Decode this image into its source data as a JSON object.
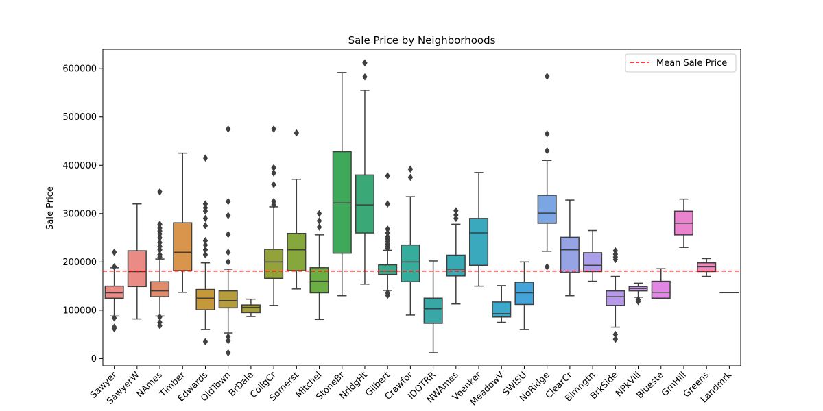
{
  "chart_data": {
    "type": "box",
    "title": "Sale Price by Neighborhoods",
    "xlabel": "",
    "ylabel": "Sale Price",
    "ylim": [
      -15000,
      640000
    ],
    "yticks": [
      0,
      100000,
      200000,
      300000,
      400000,
      500000,
      600000
    ],
    "ytick_labels": [
      "0",
      "100000",
      "200000",
      "300000",
      "400000",
      "500000",
      "600000"
    ],
    "grid": false,
    "legend": {
      "placement": "top-right",
      "entries": [
        {
          "label": "Mean Sale Price",
          "color": "#ff0000",
          "style": "dashed"
        }
      ]
    },
    "mean_line": 181000,
    "boxes": [
      {
        "name": "Sawyer",
        "color": "#ea8c85",
        "whisker_low": 88000,
        "q1": 125000,
        "median": 136000,
        "q3": 150000,
        "whisker_high": 188000,
        "outliers": [
          62000,
          65000,
          84000,
          190000,
          220000
        ]
      },
      {
        "name": "SawyerW",
        "color": "#ea8c85",
        "whisker_low": 82000,
        "q1": 149000,
        "median": 180000,
        "q3": 223000,
        "whisker_high": 320000,
        "outliers": []
      },
      {
        "name": "NAmes",
        "color": "#de8c6c",
        "whisker_low": 88000,
        "q1": 128000,
        "median": 140000,
        "q3": 159000,
        "whisker_high": 206000,
        "outliers": [
          68000,
          75000,
          86000,
          210000,
          215000,
          225000,
          232000,
          240000,
          250000,
          258000,
          264000,
          270000,
          278000,
          345000
        ]
      },
      {
        "name": "Timber",
        "color": "#d8954b",
        "whisker_low": 137000,
        "q1": 182000,
        "median": 220000,
        "q3": 281000,
        "whisker_high": 425000,
        "outliers": []
      },
      {
        "name": "Edwards",
        "color": "#c5983c",
        "whisker_low": 60000,
        "q1": 101000,
        "median": 125000,
        "q3": 143000,
        "whisker_high": 198000,
        "outliers": [
          35000,
          215000,
          225000,
          235000,
          244000,
          275000,
          290000,
          305000,
          312000,
          320000,
          415000
        ]
      },
      {
        "name": "OldTown",
        "color": "#b59c3d",
        "whisker_low": 53000,
        "q1": 105000,
        "median": 120000,
        "q3": 140000,
        "whisker_high": 185000,
        "outliers": [
          12000,
          37000,
          45000,
          200000,
          220000,
          257000,
          296000,
          325000,
          475000
        ]
      },
      {
        "name": "BrDale",
        "color": "#a49e3b",
        "whisker_low": 87000,
        "q1": 95000,
        "median": 106000,
        "q3": 111000,
        "whisker_high": 123000,
        "outliers": []
      },
      {
        "name": "CollgCr",
        "color": "#94a23a",
        "whisker_low": 110000,
        "q1": 166000,
        "median": 200000,
        "q3": 226000,
        "whisker_high": 314000,
        "outliers": [
          318000,
          325000,
          360000,
          384000,
          395000,
          475000
        ]
      },
      {
        "name": "Somerst",
        "color": "#85a73b",
        "whisker_low": 144000,
        "q1": 182000,
        "median": 225000,
        "q3": 259000,
        "whisker_high": 371000,
        "outliers": [
          467000
        ]
      },
      {
        "name": "Mitchel",
        "color": "#6bae44",
        "whisker_low": 81000,
        "q1": 136000,
        "median": 160000,
        "q3": 188000,
        "whisker_high": 256000,
        "outliers": [
          272000,
          285000,
          300000
        ]
      },
      {
        "name": "StoneBr",
        "color": "#3ea958",
        "whisker_low": 130000,
        "q1": 218000,
        "median": 322000,
        "q3": 428000,
        "whisker_high": 592000,
        "outliers": []
      },
      {
        "name": "NridgHt",
        "color": "#3aa977",
        "whisker_low": 154000,
        "q1": 260000,
        "median": 318000,
        "q3": 380000,
        "whisker_high": 555000,
        "outliers": [
          583000,
          612000
        ]
      },
      {
        "name": "Gilbert",
        "color": "#38aa8b",
        "whisker_low": 141000,
        "q1": 174000,
        "median": 181000,
        "q3": 194000,
        "whisker_high": 224000,
        "outliers": [
          131000,
          136000,
          228000,
          232000,
          237000,
          242000,
          247000,
          252000,
          260000,
          268000,
          320000,
          378000
        ]
      },
      {
        "name": "Crawfor",
        "color": "#36ac9c",
        "whisker_low": 90000,
        "q1": 159000,
        "median": 200000,
        "q3": 235000,
        "whisker_high": 335000,
        "outliers": [
          375000,
          392000
        ]
      },
      {
        "name": "IDOTRR",
        "color": "#39a7a6",
        "whisker_low": 12000,
        "q1": 73000,
        "median": 103000,
        "q3": 125000,
        "whisker_high": 202000,
        "outliers": []
      },
      {
        "name": "NWAmes",
        "color": "#38a8b3",
        "whisker_low": 113000,
        "q1": 171000,
        "median": 185000,
        "q3": 214000,
        "whisker_high": 278000,
        "outliers": [
          290000,
          297000,
          306000
        ]
      },
      {
        "name": "Veenker",
        "color": "#3aa9bd",
        "whisker_low": 150000,
        "q1": 193000,
        "median": 260000,
        "q3": 290000,
        "whisker_high": 385000,
        "outliers": []
      },
      {
        "name": "MeadowV",
        "color": "#3ca9ca",
        "whisker_low": 75000,
        "q1": 86000,
        "median": 93000,
        "q3": 117000,
        "whisker_high": 151000,
        "outliers": []
      },
      {
        "name": "SWISU",
        "color": "#44a3d8",
        "whisker_low": 60000,
        "q1": 112000,
        "median": 136000,
        "q3": 158000,
        "whisker_high": 200000,
        "outliers": []
      },
      {
        "name": "NoRidge",
        "color": "#7ba6e3",
        "whisker_low": 222000,
        "q1": 280000,
        "median": 301000,
        "q3": 338000,
        "whisker_high": 410000,
        "outliers": [
          190000,
          430000,
          465000,
          584000
        ]
      },
      {
        "name": "ClearCr",
        "color": "#96a4e6",
        "whisker_low": 130000,
        "q1": 178000,
        "median": 225000,
        "q3": 251000,
        "whisker_high": 328000,
        "outliers": []
      },
      {
        "name": "Blmngtn",
        "color": "#ab9fe9",
        "whisker_low": 160000,
        "q1": 180000,
        "median": 193000,
        "q3": 219000,
        "whisker_high": 265000,
        "outliers": []
      },
      {
        "name": "BrkSide",
        "color": "#b69ae9",
        "whisker_low": 65000,
        "q1": 110000,
        "median": 128000,
        "q3": 140000,
        "whisker_high": 170000,
        "outliers": [
          40000,
          50000,
          205000,
          210000,
          216000,
          223000
        ]
      },
      {
        "name": "NPkVill",
        "color": "#c894e8",
        "whisker_low": 127000,
        "q1": 140000,
        "median": 145000,
        "q3": 149000,
        "whisker_high": 156000,
        "outliers": [
          118000,
          122000
        ]
      },
      {
        "name": "Blueste",
        "color": "#e286e4",
        "whisker_low": 124000,
        "q1": 125000,
        "median": 137000,
        "q3": 160000,
        "whisker_high": 186000,
        "outliers": []
      },
      {
        "name": "GrnHill",
        "color": "#eb84cf",
        "whisker_low": 230000,
        "q1": 256000,
        "median": 280000,
        "q3": 305000,
        "whisker_high": 330000,
        "outliers": []
      },
      {
        "name": "Greens",
        "color": "#ed8abb",
        "whisker_low": 170000,
        "q1": 180000,
        "median": 190000,
        "q3": 198000,
        "whisker_high": 207000,
        "outliers": []
      },
      {
        "name": "Landmrk",
        "color": "#ed8ab0",
        "whisker_low": 137000,
        "q1": 137000,
        "median": 137000,
        "q3": 137000,
        "whisker_high": 137000,
        "outliers": []
      }
    ]
  }
}
